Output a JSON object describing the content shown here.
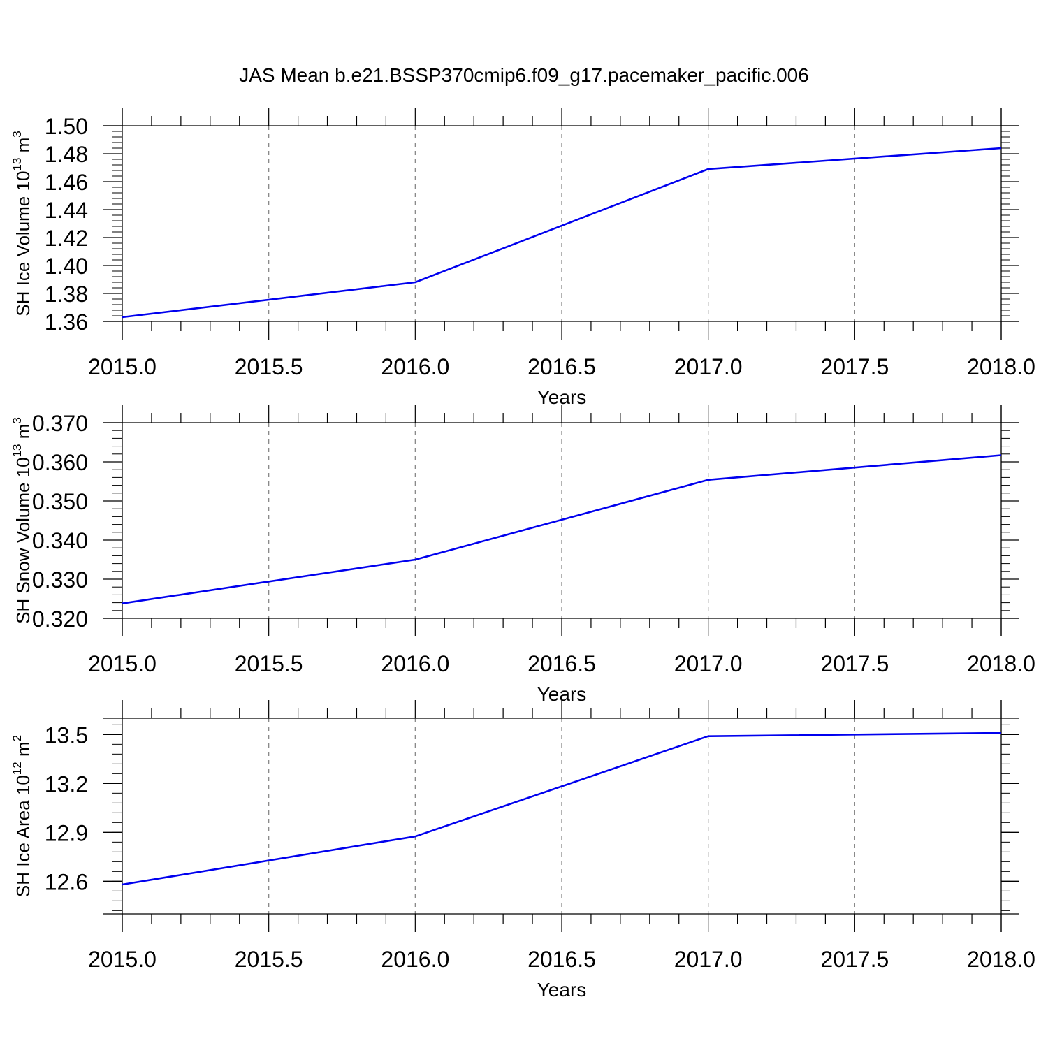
{
  "figure": {
    "title": "JAS Mean b.e21.BSSP370cmip6.f09_g17.pacemaker_pacific.006"
  },
  "chart_data": [
    {
      "type": "line",
      "title": "JAS Mean b.e21.BSSP370cmip6.f09_g17.pacemaker_pacific.006",
      "xlabel": "Years",
      "ylabel": {
        "text": "SH Ice Volume 10",
        "exp": "13",
        "unit": " m",
        "unit_exp": "3"
      },
      "xlim": [
        2015.0,
        2018.0
      ],
      "ylim": [
        1.36,
        1.5
      ],
      "xticks": [
        "2015.0",
        "2015.5",
        "2016.0",
        "2016.5",
        "2017.0",
        "2017.5",
        "2018.0"
      ],
      "yticks": [
        "1.36",
        "1.38",
        "1.40",
        "1.42",
        "1.44",
        "1.46",
        "1.48",
        "1.50"
      ],
      "grid": "vertical dashed",
      "color": "#0000ee",
      "series": [
        {
          "x": [
            2015,
            2016,
            2017,
            2018
          ],
          "y": [
            1.363,
            1.388,
            1.469,
            1.484
          ]
        }
      ]
    },
    {
      "type": "line",
      "xlabel": "Years",
      "ylabel": {
        "text": "SH Snow Volume 10",
        "exp": "13",
        "unit": " m",
        "unit_exp": "3"
      },
      "xlim": [
        2015.0,
        2018.0
      ],
      "ylim": [
        0.32,
        0.37
      ],
      "xticks": [
        "2015.0",
        "2015.5",
        "2016.0",
        "2016.5",
        "2017.0",
        "2017.5",
        "2018.0"
      ],
      "yticks": [
        "0.320",
        "0.330",
        "0.340",
        "0.350",
        "0.360",
        "0.370"
      ],
      "grid": "vertical dashed",
      "color": "#0000ee",
      "series": [
        {
          "x": [
            2015,
            2016,
            2017,
            2018
          ],
          "y": [
            0.3238,
            0.335,
            0.3554,
            0.3617
          ]
        }
      ]
    },
    {
      "type": "line",
      "xlabel": "Years",
      "ylabel": {
        "text": "SH Ice Area 10",
        "exp": "12",
        "unit": " m",
        "unit_exp": "2"
      },
      "xlim": [
        2015.0,
        2018.0
      ],
      "ylim": [
        12.4,
        13.6
      ],
      "xticks": [
        "2015.0",
        "2015.5",
        "2016.0",
        "2016.5",
        "2017.0",
        "2017.5",
        "2018.0"
      ],
      "yticks": [
        "12.6",
        "12.9",
        "13.2",
        "13.5"
      ],
      "grid": "vertical dashed",
      "color": "#0000ee",
      "series": [
        {
          "x": [
            2015,
            2016,
            2017,
            2018
          ],
          "y": [
            12.58,
            12.875,
            13.49,
            13.51
          ]
        }
      ]
    }
  ]
}
